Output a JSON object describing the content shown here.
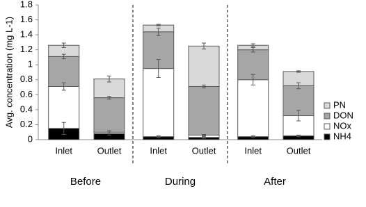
{
  "chart_data": {
    "type": "stacked-bar",
    "y_label": "Avg. concentration (mg L-1)",
    "categories": [
      "Inlet",
      "Outlet",
      "Inlet",
      "Outlet",
      "Inlet",
      "Outlet"
    ],
    "groups": [
      "Before",
      "During",
      "After"
    ],
    "series": [
      {
        "name": "NH4",
        "color": "#000000",
        "values": [
          0.15,
          0.08,
          0.04,
          0.03,
          0.04,
          0.05
        ],
        "errors": [
          0.08,
          0.02,
          0.01,
          0.01,
          0.01,
          0.01
        ]
      },
      {
        "name": "NOx",
        "color": "#ffffff",
        "values": [
          0.56,
          0.02,
          0.91,
          0.03,
          0.76,
          0.27
        ],
        "errors": [
          0.05,
          0.02,
          0.12,
          0.01,
          0.07,
          0.07
        ]
      },
      {
        "name": "DON",
        "color": "#a6a6a6",
        "values": [
          0.4,
          0.46,
          0.49,
          0.65,
          0.4,
          0.4
        ],
        "errors": [
          0.03,
          0.02,
          0.05,
          0.02,
          0.03,
          0.04
        ]
      },
      {
        "name": "PN",
        "color": "#d9d9d9",
        "values": [
          0.15,
          0.25,
          0.09,
          0.54,
          0.06,
          0.19
        ],
        "errors": [
          0.03,
          0.04,
          0.01,
          0.04,
          0.02,
          0.01
        ]
      }
    ],
    "ylim": [
      0,
      1.8
    ],
    "yticks": [
      0,
      0.2,
      0.4,
      0.6,
      0.8,
      1,
      1.2,
      1.4,
      1.6,
      1.8
    ],
    "grid": false
  }
}
